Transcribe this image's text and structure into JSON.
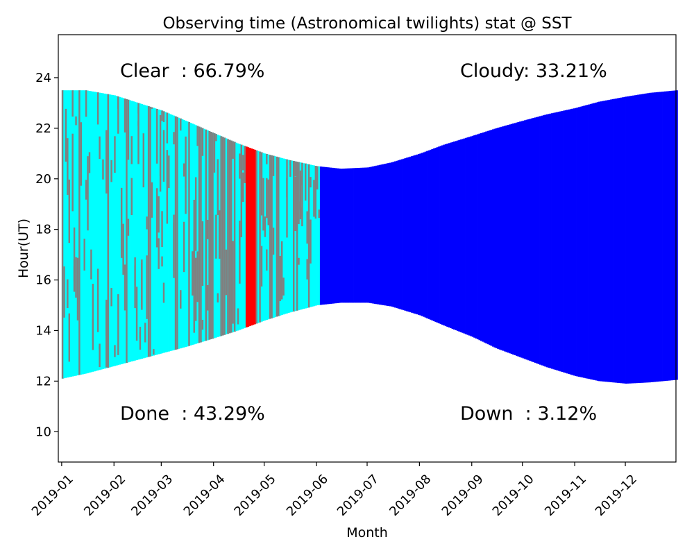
{
  "chart_data": {
    "type": "bar",
    "title": "Observing time (Astronomical twilights) stat @ SST",
    "xlabel": "Month",
    "ylabel": "Hour(UT)",
    "ylim": [
      8.8,
      25.7
    ],
    "xlim": [
      "2018-12-30",
      "2019-12-31"
    ],
    "grid": false,
    "x_ticks": [
      "2019-01",
      "2019-02",
      "2019-03",
      "2019-04",
      "2019-05",
      "2019-06",
      "2019-07",
      "2019-08",
      "2019-09",
      "2019-10",
      "2019-11",
      "2019-12"
    ],
    "x_tick_dates": [
      "2019-01-01",
      "2019-02-01",
      "2019-03-01",
      "2019-04-01",
      "2019-05-01",
      "2019-06-01",
      "2019-07-01",
      "2019-08-01",
      "2019-09-01",
      "2019-10-01",
      "2019-11-01",
      "2019-12-01"
    ],
    "y_ticks": [
      10,
      12,
      14,
      16,
      18,
      20,
      22,
      24
    ],
    "stats": {
      "clear": "Clear  : 66.79%",
      "cloudy": "Cloudy: 33.21%",
      "done": "Done  : 43.29%",
      "down": "Down  : 3.12%"
    },
    "colors": {
      "clear": "#00ffff",
      "cloudy": "#808080",
      "down": "#ff0000",
      "future": "#0000ff"
    },
    "night_bounds": {
      "dates": [
        "2019-01-01",
        "2019-01-15",
        "2019-02-01",
        "2019-02-15",
        "2019-03-01",
        "2019-03-15",
        "2019-04-01",
        "2019-04-15",
        "2019-05-01",
        "2019-05-15",
        "2019-06-01",
        "2019-06-15",
        "2019-07-01",
        "2019-07-15",
        "2019-08-01",
        "2019-08-15",
        "2019-09-01",
        "2019-09-15",
        "2019-10-01",
        "2019-10-15",
        "2019-11-01",
        "2019-11-15",
        "2019-12-01",
        "2019-12-15",
        "2019-12-31"
      ],
      "start": [
        12.1,
        12.3,
        12.6,
        12.85,
        13.1,
        13.35,
        13.7,
        14.0,
        14.4,
        14.7,
        15.0,
        15.1,
        15.1,
        14.95,
        14.6,
        14.2,
        13.75,
        13.3,
        12.9,
        12.55,
        12.2,
        12.0,
        11.9,
        11.95,
        12.05
      ],
      "end": [
        23.5,
        23.5,
        23.3,
        23.0,
        22.7,
        22.3,
        21.8,
        21.4,
        21.0,
        20.75,
        20.5,
        20.4,
        20.45,
        20.65,
        21.0,
        21.35,
        21.7,
        22.0,
        22.3,
        22.55,
        22.8,
        23.05,
        23.25,
        23.4,
        23.5
      ]
    },
    "down_period": {
      "start": "2019-04-20",
      "end": "2019-04-25"
    },
    "observed_until": "2019-06-03",
    "cloudy_fraction": 0.3321,
    "clear_fraction": 0.6679
  }
}
